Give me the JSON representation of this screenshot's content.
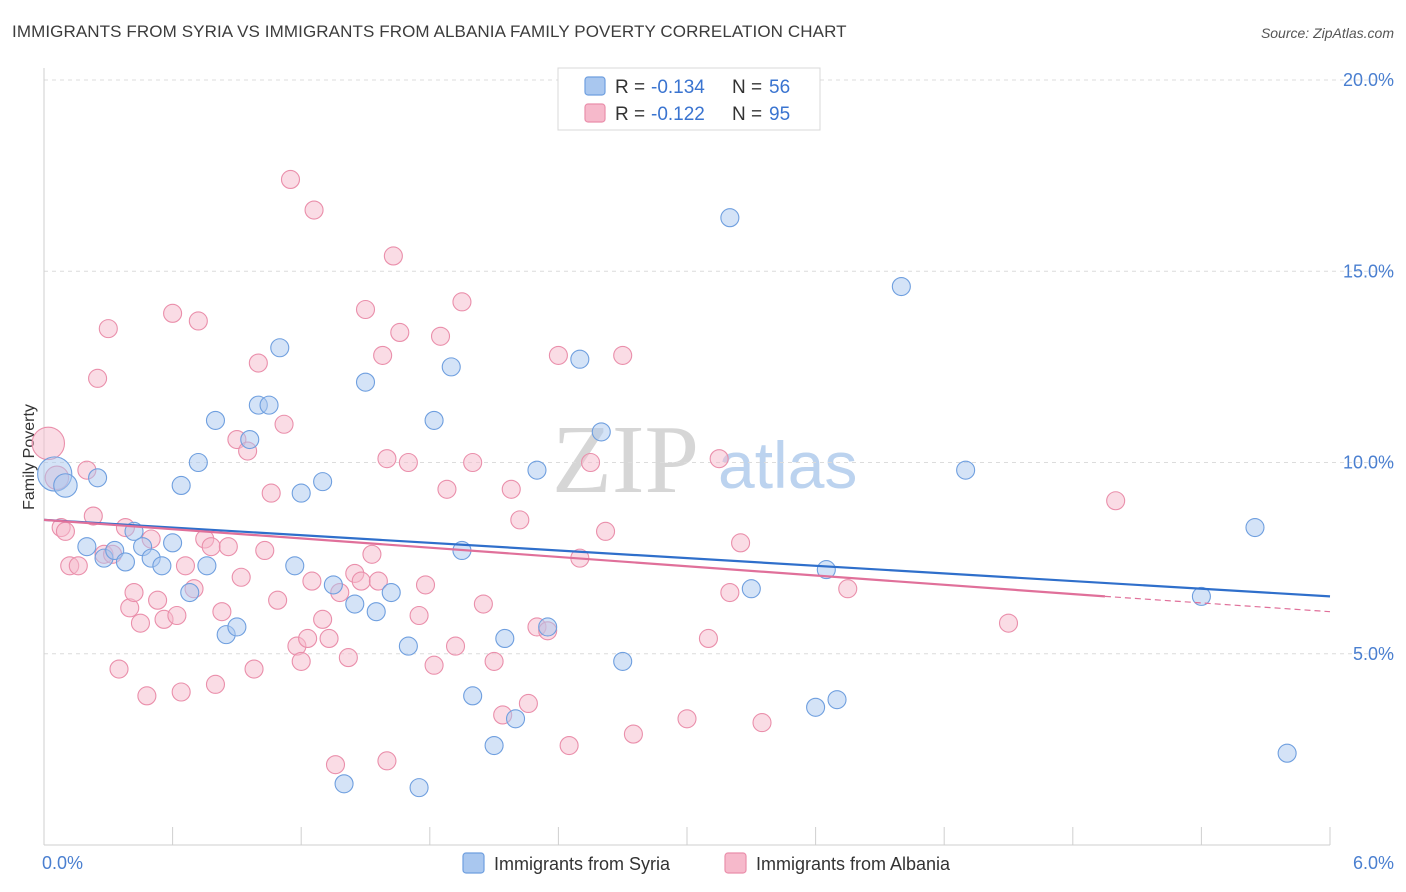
{
  "page": {
    "title": "IMMIGRANTS FROM SYRIA VS IMMIGRANTS FROM ALBANIA FAMILY POVERTY CORRELATION CHART",
    "source": "Source: ZipAtlas.com"
  },
  "watermark": {
    "zip": "ZIP",
    "atlas": "atlas"
  },
  "colors": {
    "syria_fill": "#a9c7ef",
    "syria_stroke": "#6f9fdf",
    "syria_line": "#2f6fcb",
    "albania_fill": "#f6b9cb",
    "albania_stroke": "#ea8fab",
    "albania_line": "#e0709a",
    "grid": "#dcdcdc",
    "axis_label": "#4a7fd0"
  },
  "legend": {
    "r_label": "R =",
    "n_label": "N =",
    "entries": [
      {
        "r": "-0.134",
        "n": "56"
      },
      {
        "r": "-0.122",
        "n": "95"
      }
    ]
  },
  "chart_data": {
    "type": "scatter",
    "title": "IMMIGRANTS FROM SYRIA VS IMMIGRANTS FROM ALBANIA FAMILY POVERTY CORRELATION CHART",
    "xlabel": "",
    "ylabel": "Family Poverty",
    "xlim": [
      0,
      6.0
    ],
    "ylim": [
      0,
      20.0
    ],
    "x_tick_labels": [
      "0.0%",
      "6.0%"
    ],
    "y_ticks": [
      5,
      10,
      15,
      20
    ],
    "y_tick_labels": [
      "5.0%",
      "10.0%",
      "15.0%",
      "20.0%"
    ],
    "grid": true,
    "legend_position": "top-center",
    "series": [
      {
        "name": "Immigrants from Syria",
        "r": -0.134,
        "n": 56,
        "trend": {
          "x": [
            0.0,
            6.0
          ],
          "y": [
            8.5,
            6.5
          ]
        },
        "points": [
          [
            0.05,
            9.7,
            1.9
          ],
          [
            0.1,
            9.4,
            1.3
          ],
          [
            0.25,
            9.6,
            1.0
          ],
          [
            0.2,
            7.8,
            1.0
          ],
          [
            0.28,
            7.5,
            1.0
          ],
          [
            0.33,
            7.7,
            1.0
          ],
          [
            0.38,
            7.4,
            1.0
          ],
          [
            0.42,
            8.2,
            1.0
          ],
          [
            0.46,
            7.8,
            1.0
          ],
          [
            0.5,
            7.5,
            1.0
          ],
          [
            0.55,
            7.3,
            1.0
          ],
          [
            0.6,
            7.9,
            1.0
          ],
          [
            0.64,
            9.4,
            1.0
          ],
          [
            0.68,
            6.6,
            1.0
          ],
          [
            0.72,
            10.0,
            1.0
          ],
          [
            0.76,
            7.3,
            1.0
          ],
          [
            0.8,
            11.1,
            1.0
          ],
          [
            0.85,
            5.5,
            1.0
          ],
          [
            0.9,
            5.7,
            1.0
          ],
          [
            0.96,
            10.6,
            1.0
          ],
          [
            1.0,
            11.5,
            1.0
          ],
          [
            1.05,
            11.5,
            1.0
          ],
          [
            1.1,
            13.0,
            1.0
          ],
          [
            1.17,
            7.3,
            1.0
          ],
          [
            1.2,
            9.2,
            1.0
          ],
          [
            1.3,
            9.5,
            1.0
          ],
          [
            1.4,
            1.6,
            1.0
          ],
          [
            1.45,
            6.3,
            1.0
          ],
          [
            1.5,
            12.1,
            1.0
          ],
          [
            1.55,
            6.1,
            1.0
          ],
          [
            1.62,
            6.6,
            1.0
          ],
          [
            1.7,
            5.2,
            1.0
          ],
          [
            1.75,
            1.5,
            1.0
          ],
          [
            1.82,
            11.1,
            1.0
          ],
          [
            1.9,
            12.5,
            1.0
          ],
          [
            1.95,
            7.7,
            1.0
          ],
          [
            2.0,
            3.9,
            1.0
          ],
          [
            2.1,
            2.6,
            1.0
          ],
          [
            2.15,
            5.4,
            1.0
          ],
          [
            2.2,
            3.3,
            1.0
          ],
          [
            2.3,
            9.8,
            1.0
          ],
          [
            2.35,
            5.7,
            1.0
          ],
          [
            2.5,
            12.7,
            1.0
          ],
          [
            2.6,
            10.8,
            1.0
          ],
          [
            2.7,
            4.8,
            1.0
          ],
          [
            3.2,
            16.4,
            1.0
          ],
          [
            3.3,
            6.7,
            1.0
          ],
          [
            3.65,
            7.2,
            1.0
          ],
          [
            4.0,
            14.6,
            1.0
          ],
          [
            4.3,
            9.8,
            1.0
          ],
          [
            3.6,
            3.6,
            1.0
          ],
          [
            5.4,
            6.5,
            1.0
          ],
          [
            5.65,
            8.3,
            1.0
          ],
          [
            5.8,
            2.4,
            1.0
          ],
          [
            3.7,
            3.8,
            1.0
          ],
          [
            1.35,
            6.8,
            1.0
          ]
        ]
      },
      {
        "name": "Immigrants from Albania",
        "r": -0.122,
        "n": 95,
        "trend": {
          "x": [
            0.0,
            4.95
          ],
          "y": [
            8.5,
            6.5
          ]
        },
        "trend_dashed": {
          "x": [
            4.95,
            6.0
          ],
          "y": [
            6.5,
            6.1
          ]
        },
        "points": [
          [
            0.02,
            10.5,
            1.8
          ],
          [
            0.06,
            9.6,
            1.3
          ],
          [
            0.08,
            8.3,
            1.0
          ],
          [
            0.1,
            8.2,
            1.0
          ],
          [
            0.12,
            7.3,
            1.0
          ],
          [
            0.16,
            7.3,
            1.0
          ],
          [
            0.2,
            9.8,
            1.0
          ],
          [
            0.23,
            8.6,
            1.0
          ],
          [
            0.25,
            12.2,
            1.0
          ],
          [
            0.28,
            7.6,
            1.0
          ],
          [
            0.3,
            13.5,
            1.0
          ],
          [
            0.32,
            7.6,
            1.0
          ],
          [
            0.35,
            4.6,
            1.0
          ],
          [
            0.38,
            8.3,
            1.0
          ],
          [
            0.4,
            6.2,
            1.0
          ],
          [
            0.42,
            6.6,
            1.0
          ],
          [
            0.45,
            5.8,
            1.0
          ],
          [
            0.48,
            3.9,
            1.0
          ],
          [
            0.5,
            8.0,
            1.0
          ],
          [
            0.53,
            6.4,
            1.0
          ],
          [
            0.56,
            5.9,
            1.0
          ],
          [
            0.6,
            13.9,
            1.0
          ],
          [
            0.62,
            6.0,
            1.0
          ],
          [
            0.64,
            4.0,
            1.0
          ],
          [
            0.66,
            7.3,
            1.0
          ],
          [
            0.7,
            6.7,
            1.0
          ],
          [
            0.72,
            13.7,
            1.0
          ],
          [
            0.75,
            8.0,
            1.0
          ],
          [
            0.78,
            7.8,
            1.0
          ],
          [
            0.8,
            4.2,
            1.0
          ],
          [
            0.83,
            6.1,
            1.0
          ],
          [
            0.86,
            7.8,
            1.0
          ],
          [
            0.9,
            10.6,
            1.0
          ],
          [
            0.92,
            7.0,
            1.0
          ],
          [
            0.95,
            10.3,
            1.0
          ],
          [
            0.98,
            4.6,
            1.0
          ],
          [
            1.0,
            12.6,
            1.0
          ],
          [
            1.03,
            7.7,
            1.0
          ],
          [
            1.06,
            9.2,
            1.0
          ],
          [
            1.09,
            6.4,
            1.0
          ],
          [
            1.12,
            11.0,
            1.0
          ],
          [
            1.15,
            17.4,
            1.0
          ],
          [
            1.18,
            5.2,
            1.0
          ],
          [
            1.2,
            4.8,
            1.0
          ],
          [
            1.23,
            5.4,
            1.0
          ],
          [
            1.26,
            16.6,
            1.0
          ],
          [
            1.3,
            5.9,
            1.0
          ],
          [
            1.33,
            5.4,
            1.0
          ],
          [
            1.36,
            2.1,
            1.0
          ],
          [
            1.38,
            6.6,
            1.0
          ],
          [
            1.42,
            4.9,
            1.0
          ],
          [
            1.45,
            7.1,
            1.0
          ],
          [
            1.48,
            6.9,
            1.0
          ],
          [
            1.5,
            14.0,
            1.0
          ],
          [
            1.53,
            7.6,
            1.0
          ],
          [
            1.56,
            6.9,
            1.0
          ],
          [
            1.58,
            12.8,
            1.0
          ],
          [
            1.6,
            10.1,
            1.0
          ],
          [
            1.63,
            15.4,
            1.0
          ],
          [
            1.66,
            13.4,
            1.0
          ],
          [
            1.7,
            10.0,
            1.0
          ],
          [
            1.75,
            6.0,
            1.0
          ],
          [
            1.78,
            6.8,
            1.0
          ],
          [
            1.82,
            4.7,
            1.0
          ],
          [
            1.85,
            13.3,
            1.0
          ],
          [
            1.88,
            9.3,
            1.0
          ],
          [
            1.92,
            5.2,
            1.0
          ],
          [
            1.95,
            14.2,
            1.0
          ],
          [
            2.0,
            10.0,
            1.0
          ],
          [
            2.05,
            6.3,
            1.0
          ],
          [
            2.1,
            4.8,
            1.0
          ],
          [
            2.14,
            3.4,
            1.0
          ],
          [
            2.18,
            9.3,
            1.0
          ],
          [
            2.22,
            8.5,
            1.0
          ],
          [
            2.26,
            3.7,
            1.0
          ],
          [
            2.3,
            5.7,
            1.0
          ],
          [
            2.35,
            5.6,
            1.0
          ],
          [
            2.4,
            12.8,
            1.0
          ],
          [
            2.45,
            2.6,
            1.0
          ],
          [
            2.5,
            7.5,
            1.0
          ],
          [
            2.55,
            10.0,
            1.0
          ],
          [
            2.62,
            8.2,
            1.0
          ],
          [
            2.7,
            12.8,
            1.0
          ],
          [
            2.75,
            2.9,
            1.0
          ],
          [
            3.0,
            3.3,
            1.0
          ],
          [
            3.1,
            5.4,
            1.0
          ],
          [
            3.15,
            10.1,
            1.0
          ],
          [
            3.2,
            6.6,
            1.0
          ],
          [
            3.25,
            7.9,
            1.0
          ],
          [
            3.35,
            3.2,
            1.0
          ],
          [
            3.75,
            6.7,
            1.0
          ],
          [
            4.5,
            5.8,
            1.0
          ],
          [
            5.0,
            9.0,
            1.0
          ],
          [
            1.6,
            2.2,
            1.0
          ],
          [
            1.25,
            6.9,
            1.0
          ]
        ]
      }
    ]
  }
}
